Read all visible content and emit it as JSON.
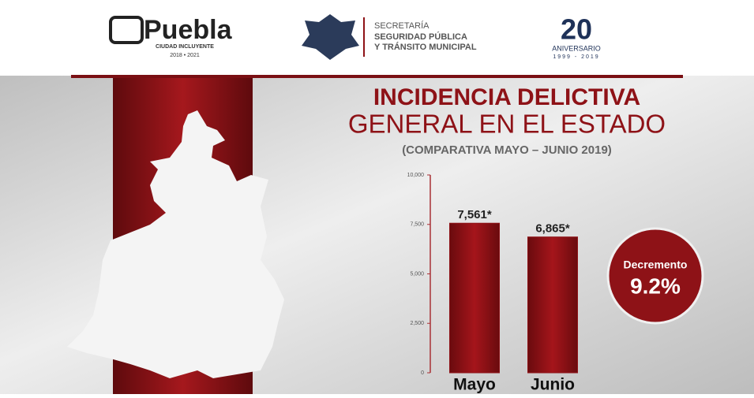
{
  "header": {
    "city_logo": "Puebla",
    "city_motto": "CIUDAD INCLUYENTE",
    "city_term": "2018 • 2021",
    "agency_line1": "SECRETARÍA",
    "agency_line2": "SEGURIDAD PÚBLICA",
    "agency_line3": "Y TRÁNSITO MUNICIPAL",
    "anniversary_number": "20",
    "anniversary_text": "ANIVERSARIO",
    "anniversary_years": "1999 - 2019"
  },
  "badge": {
    "label": "Decremento",
    "text": "9.2%"
  },
  "chart_data": {
    "type": "bar",
    "title": "INCIDENCIA DELICTIVA",
    "subtitle": "GENERAL EN EL ESTADO",
    "note": "(COMPARATIVA MAYO – JUNIO 2019)",
    "categories": [
      "Mayo",
      "Junio"
    ],
    "values": [
      7561,
      6865
    ],
    "value_labels": [
      "7,561*",
      "6,865*"
    ],
    "color": "#8e1217",
    "ylim": [
      0,
      10000
    ],
    "yticks": [
      0,
      {
        "value": 2500,
        "label": "2,500"
      },
      {
        "value": 5000,
        "label": "5,000"
      },
      {
        "value": 7500,
        "label": "7,500"
      },
      {
        "value": 10000,
        "label": "10,000"
      }
    ]
  }
}
